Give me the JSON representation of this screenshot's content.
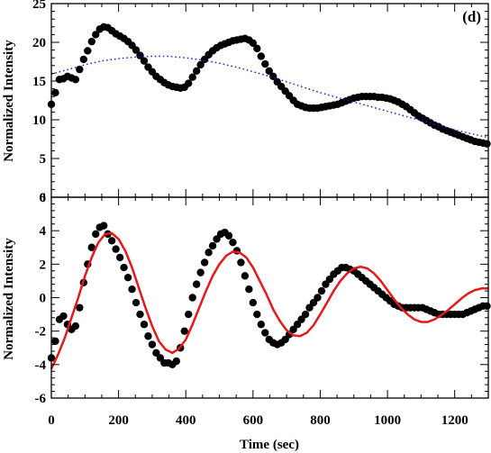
{
  "chart_data": [
    {
      "type": "scatter",
      "panel_label": "(d)",
      "ylabel": "Normalized Intensity",
      "xlim": [
        0,
        1300
      ],
      "ylim": [
        0,
        25
      ],
      "yticks": [
        0,
        5,
        10,
        15,
        20,
        25
      ],
      "grid": false,
      "series": [
        {
          "style": "points",
          "color": "#000000",
          "x": [
            0,
            12,
            24,
            36,
            48,
            60,
            72,
            84,
            96,
            108,
            120,
            132,
            144,
            156,
            168,
            180,
            192,
            204,
            216,
            228,
            240,
            252,
            264,
            276,
            288,
            300,
            312,
            324,
            336,
            348,
            360,
            372,
            384,
            396,
            408,
            420,
            432,
            444,
            456,
            468,
            480,
            492,
            504,
            516,
            528,
            540,
            552,
            564,
            576,
            588,
            600,
            612,
            624,
            636,
            648,
            660,
            672,
            684,
            696,
            708,
            720,
            732,
            744,
            756,
            768,
            780,
            792,
            804,
            816,
            828,
            840,
            852,
            864,
            876,
            888,
            900,
            912,
            924,
            936,
            948,
            960,
            972,
            984,
            996,
            1008,
            1020,
            1032,
            1044,
            1056,
            1068,
            1080,
            1092,
            1104,
            1116,
            1128,
            1140,
            1152,
            1164,
            1176,
            1188,
            1200,
            1212,
            1224,
            1236,
            1248,
            1260,
            1272,
            1284,
            1296
          ],
          "y": [
            12,
            13.5,
            15.2,
            15.3,
            15.6,
            15.4,
            15.2,
            16.5,
            17.8,
            18.9,
            20.1,
            21.0,
            21.7,
            22.0,
            21.9,
            21.5,
            21.1,
            20.8,
            20.5,
            20.1,
            19.6,
            19.0,
            18.3,
            17.6,
            16.8,
            16.2,
            15.6,
            15.2,
            14.8,
            14.5,
            14.3,
            14.2,
            14.1,
            14.2,
            14.7,
            15.5,
            16.3,
            17.1,
            17.8,
            18.4,
            18.9,
            19.3,
            19.6,
            19.8,
            20.0,
            20.2,
            20.3,
            20.4,
            20.5,
            20.3,
            19.9,
            19.2,
            18.2,
            17.2,
            16.3,
            15.6,
            14.9,
            14.3,
            13.7,
            13.1,
            12.5,
            12.0,
            11.8,
            11.6,
            11.5,
            11.5,
            11.5,
            11.6,
            11.7,
            11.8,
            11.9,
            12.0,
            12.2,
            12.4,
            12.6,
            12.8,
            12.9,
            13.0,
            13.0,
            13.0,
            13.0,
            12.9,
            12.9,
            12.8,
            12.7,
            12.5,
            12.3,
            12.0,
            11.7,
            11.3,
            10.9,
            10.5,
            10.2,
            9.9,
            9.6,
            9.3,
            9.1,
            8.8,
            8.6,
            8.4,
            8.2,
            8.0,
            7.8,
            7.6,
            7.4,
            7.2,
            7.1,
            7.0,
            6.9
          ]
        },
        {
          "style": "dotted-line",
          "color": "#1a1acc",
          "x": [
            0,
            50,
            100,
            150,
            200,
            250,
            300,
            350,
            400,
            450,
            500,
            550,
            600,
            650,
            700,
            750,
            800,
            850,
            900,
            950,
            1000,
            1050,
            1100,
            1150,
            1200,
            1250,
            1300
          ],
          "y": [
            15.9,
            16.5,
            17.1,
            17.6,
            17.9,
            18.1,
            18.2,
            18.2,
            18.0,
            17.7,
            17.3,
            16.8,
            16.2,
            15.6,
            14.9,
            14.2,
            13.5,
            12.9,
            12.3,
            11.7,
            11.1,
            10.5,
            9.9,
            9.3,
            8.7,
            8.2,
            7.7
          ]
        }
      ]
    },
    {
      "type": "scatter",
      "xlabel": "Time (sec)",
      "ylabel": "Normalized Intensity",
      "xlim": [
        0,
        1300
      ],
      "ylim": [
        -6,
        6
      ],
      "xticks": [
        0,
        200,
        400,
        600,
        800,
        1000,
        1200
      ],
      "yticks": [
        -6,
        -4,
        -2,
        0,
        2,
        4,
        6
      ],
      "grid": false,
      "series": [
        {
          "style": "points",
          "color": "#000000",
          "x": [
            0,
            12,
            24,
            36,
            48,
            60,
            72,
            84,
            96,
            108,
            120,
            132,
            144,
            156,
            168,
            180,
            192,
            204,
            216,
            228,
            240,
            252,
            264,
            276,
            288,
            300,
            312,
            324,
            336,
            348,
            360,
            372,
            384,
            396,
            408,
            420,
            432,
            444,
            456,
            468,
            480,
            492,
            504,
            516,
            528,
            540,
            552,
            564,
            576,
            588,
            600,
            612,
            624,
            636,
            648,
            660,
            672,
            684,
            696,
            708,
            720,
            732,
            744,
            756,
            768,
            780,
            792,
            804,
            816,
            828,
            840,
            852,
            864,
            876,
            888,
            900,
            912,
            924,
            936,
            948,
            960,
            972,
            984,
            996,
            1008,
            1020,
            1032,
            1044,
            1056,
            1068,
            1080,
            1092,
            1104,
            1116,
            1128,
            1140,
            1152,
            1164,
            1176,
            1188,
            1200,
            1212,
            1224,
            1236,
            1248,
            1260,
            1272,
            1284,
            1296
          ],
          "y": [
            -3.6,
            -2.6,
            -1.3,
            -1.1,
            -1.6,
            -1.9,
            -1.7,
            -0.6,
            0.9,
            2.0,
            3.0,
            3.8,
            4.2,
            4.3,
            3.8,
            3.4,
            2.9,
            2.4,
            1.8,
            1.2,
            0.5,
            -0.3,
            -1.0,
            -1.6,
            -2.3,
            -2.8,
            -3.3,
            -3.6,
            -3.9,
            -3.9,
            -4.0,
            -3.8,
            -3.0,
            -2.0,
            -1.0,
            0.0,
            0.8,
            1.5,
            2.1,
            2.7,
            3.1,
            3.5,
            3.8,
            3.9,
            3.7,
            3.3,
            2.8,
            2.1,
            1.3,
            0.5,
            -0.3,
            -1.0,
            -1.6,
            -2.1,
            -2.5,
            -2.7,
            -2.8,
            -2.7,
            -2.5,
            -2.2,
            -1.9,
            -1.6,
            -1.3,
            -1.0,
            -0.6,
            -0.3,
            0.0,
            0.4,
            0.8,
            1.1,
            1.4,
            1.6,
            1.8,
            1.8,
            1.7,
            1.6,
            1.4,
            1.2,
            1.0,
            0.8,
            0.6,
            0.4,
            0.2,
            0.0,
            -0.2,
            -0.4,
            -0.5,
            -0.6,
            -0.6,
            -0.6,
            -0.6,
            -0.6,
            -0.6,
            -0.7,
            -0.8,
            -0.9,
            -1.0,
            -1.0,
            -1.0,
            -1.0,
            -1.0,
            -1.0,
            -1.0,
            -0.9,
            -0.8,
            -0.7,
            -0.6,
            -0.5,
            -0.5
          ]
        },
        {
          "style": "line",
          "color": "#e61919",
          "x": [
            0,
            20,
            40,
            60,
            80,
            100,
            120,
            140,
            160,
            180,
            200,
            220,
            240,
            260,
            280,
            300,
            320,
            340,
            360,
            380,
            400,
            420,
            440,
            460,
            480,
            500,
            520,
            540,
            560,
            580,
            600,
            620,
            640,
            660,
            680,
            700,
            720,
            740,
            760,
            780,
            800,
            820,
            840,
            860,
            880,
            900,
            920,
            940,
            960,
            980,
            1000,
            1020,
            1040,
            1060,
            1080,
            1100,
            1120,
            1140,
            1160,
            1180,
            1200,
            1220,
            1240,
            1260,
            1280,
            1300
          ],
          "y": [
            -4.25,
            -3.4,
            -2.4,
            -1.2,
            0.0,
            1.3,
            2.4,
            3.3,
            3.8,
            3.85,
            3.5,
            2.8,
            1.8,
            0.6,
            -0.6,
            -1.7,
            -2.6,
            -3.1,
            -3.3,
            -3.05,
            -2.5,
            -1.6,
            -0.6,
            0.4,
            1.3,
            2.0,
            2.5,
            2.75,
            2.7,
            2.4,
            1.8,
            1.0,
            0.2,
            -0.7,
            -1.4,
            -1.95,
            -2.25,
            -2.3,
            -2.1,
            -1.65,
            -1.0,
            -0.3,
            0.4,
            1.0,
            1.45,
            1.75,
            1.85,
            1.75,
            1.45,
            1.0,
            0.45,
            -0.1,
            -0.6,
            -1.0,
            -1.3,
            -1.45,
            -1.45,
            -1.3,
            -1.05,
            -0.75,
            -0.4,
            -0.05,
            0.25,
            0.45,
            0.55,
            0.55
          ]
        }
      ]
    }
  ]
}
